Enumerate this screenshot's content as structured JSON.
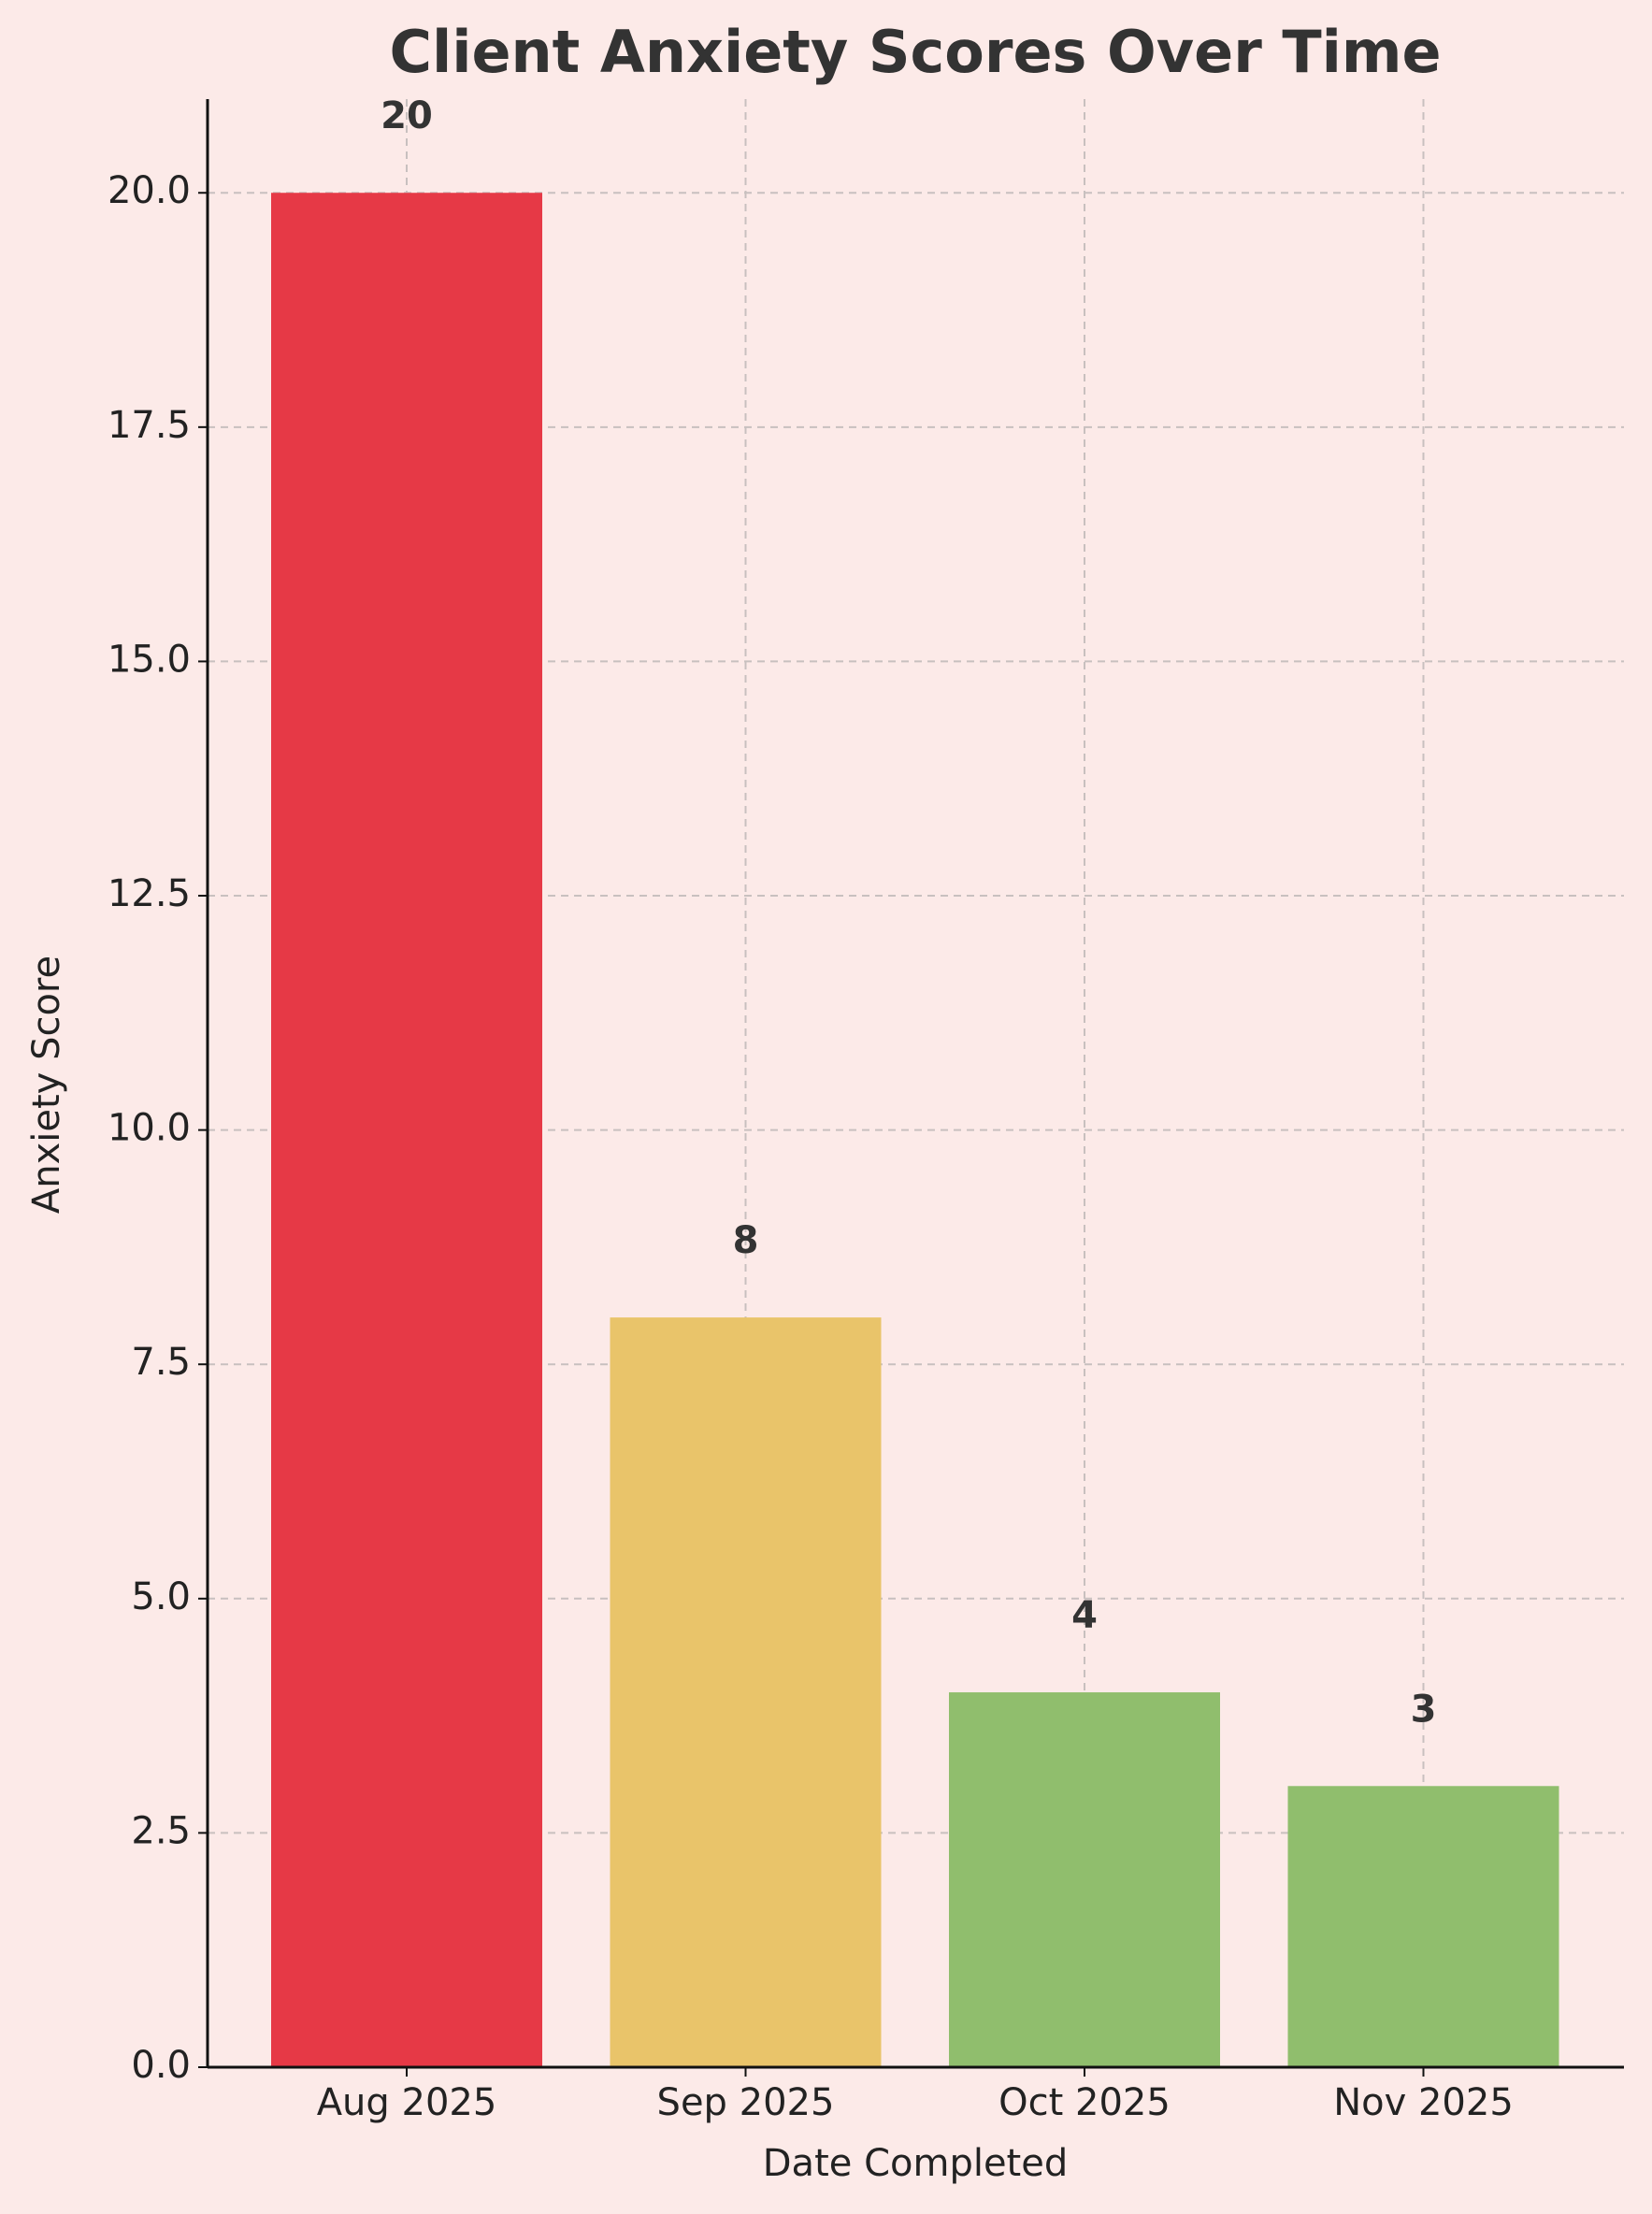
{
  "chart_data": {
    "type": "bar",
    "title": "Client Anxiety Scores Over Time",
    "x_label": "Date Completed",
    "y_label": "Anxiety Score",
    "categories": [
      "Aug 2025",
      "Sep 2025",
      "Oct 2025",
      "Nov 2025"
    ],
    "values": [
      20,
      8,
      4,
      3
    ],
    "colors": [
      "#e63946",
      "#e9c46a",
      "#90be6d",
      "#90be6d"
    ],
    "ylim": [
      0,
      21
    ],
    "yticks": [
      {
        "value": 0,
        "label": "0.0"
      },
      2.5,
      {
        "value": 5,
        "label": "5.0"
      },
      7.5,
      {
        "value": 10,
        "label": "10.0"
      },
      12.5,
      {
        "value": 15,
        "label": "15.0"
      },
      17.5,
      {
        "value": 20,
        "label": "20.0"
      }
    ],
    "grid": true
  }
}
